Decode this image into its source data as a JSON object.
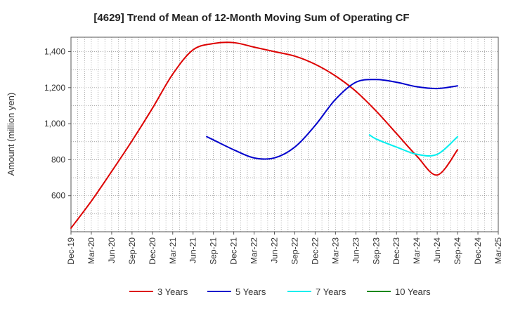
{
  "chart_data": {
    "type": "line",
    "title": "[4629]  Trend of Mean of 12-Month Moving Sum of Operating CF",
    "xlabel": "",
    "ylabel": "Amount (million yen)",
    "ylim": [
      400,
      1480
    ],
    "yticks": [
      600,
      800,
      1000,
      1200,
      1400
    ],
    "ytick_labels": [
      "600",
      "800",
      "1,000",
      "1,200",
      "1,400"
    ],
    "xtick_labels": [
      "Dec-19",
      "Mar-20",
      "Jun-20",
      "Sep-20",
      "Dec-20",
      "Mar-21",
      "Jun-21",
      "Sep-21",
      "Dec-21",
      "Mar-22",
      "Jun-22",
      "Sep-22",
      "Dec-22",
      "Mar-23",
      "Jun-23",
      "Sep-23",
      "Dec-23",
      "Mar-24",
      "Jun-24",
      "Sep-24",
      "Dec-24",
      "Mar-25"
    ],
    "grid": true,
    "legend_position": "bottom",
    "series": [
      {
        "name": "3 Years",
        "color": "#dd0000",
        "x": [
          0,
          1,
          2,
          3,
          4,
          5,
          6,
          7,
          8,
          9,
          10,
          11,
          12,
          13,
          14,
          15,
          16,
          17,
          18,
          19
        ],
        "values": [
          420,
          570,
          735,
          905,
          1085,
          1275,
          1410,
          1445,
          1450,
          1425,
          1400,
          1375,
          1330,
          1265,
          1180,
          1070,
          945,
          820,
          715,
          855
        ]
      },
      {
        "name": "5 Years",
        "color": "#0000cc",
        "x": [
          6.67,
          7,
          8,
          9,
          10,
          11,
          12,
          13,
          14,
          15,
          16,
          17,
          18,
          19
        ],
        "values": [
          928,
          910,
          855,
          810,
          810,
          870,
          990,
          1135,
          1230,
          1245,
          1230,
          1205,
          1195,
          1210
        ]
      },
      {
        "name": "7 Years",
        "color": "#00eeee",
        "x": [
          14.67,
          15,
          16,
          17,
          18,
          19
        ],
        "values": [
          938,
          915,
          870,
          830,
          830,
          928
        ]
      },
      {
        "name": "10 Years",
        "color": "#008800",
        "x": [],
        "values": []
      }
    ]
  }
}
